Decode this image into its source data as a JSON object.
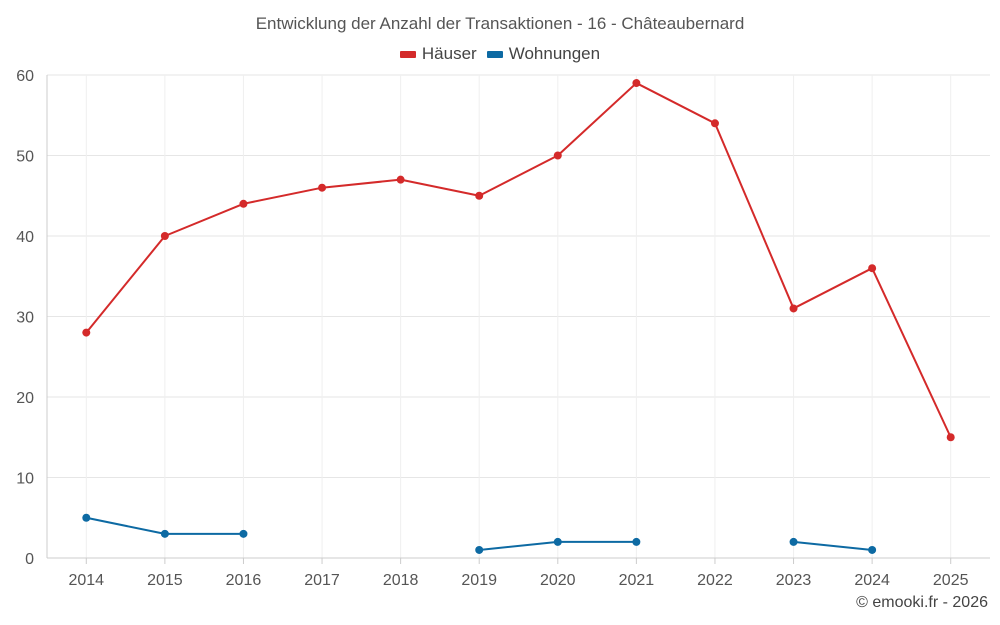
{
  "chart_data": {
    "type": "line",
    "title": "Entwicklung der Anzahl der Transaktionen - 16 - Châteaubernard",
    "xlabel": "",
    "ylabel": "",
    "categories": [
      "2014",
      "2015",
      "2016",
      "2017",
      "2018",
      "2019",
      "2020",
      "2021",
      "2022",
      "2023",
      "2024",
      "2025"
    ],
    "ylim": [
      0,
      60
    ],
    "yticks": [
      0,
      10,
      20,
      30,
      40,
      50,
      60
    ],
    "grid": true,
    "legend_position": "top-center",
    "series": [
      {
        "name": "Häuser",
        "color": "#d42a2a",
        "values": [
          28,
          40,
          44,
          46,
          47,
          45,
          50,
          59,
          54,
          31,
          36,
          15
        ]
      },
      {
        "name": "Wohnungen",
        "color": "#0d6aa3",
        "values": [
          5,
          3,
          3,
          null,
          null,
          1,
          2,
          2,
          null,
          2,
          1,
          null
        ]
      }
    ]
  },
  "credit": "© emooki.fr - 2026"
}
